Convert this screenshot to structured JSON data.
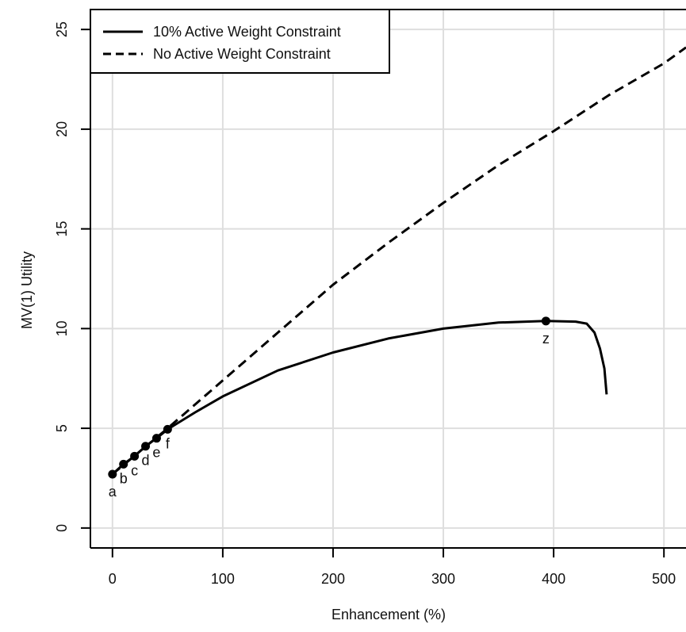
{
  "chart_data": {
    "type": "line",
    "title": "",
    "xlabel": "Enhancement (%)",
    "ylabel": "MV(1) Utility",
    "xlim": [
      -20,
      520
    ],
    "ylim": [
      -1,
      26
    ],
    "x_ticks": [
      "0",
      "100",
      "200",
      "300",
      "400",
      "500"
    ],
    "y_ticks": [
      "0",
      "5",
      "10",
      "15",
      "20",
      "25"
    ],
    "grid": true,
    "legend_position": "top-left",
    "series": [
      {
        "name": "10% Active Weight Constraint",
        "style": "solid",
        "color": "#000000",
        "points": [
          [
            0,
            2.7
          ],
          [
            10,
            3.2
          ],
          [
            20,
            3.6
          ],
          [
            30,
            4.1
          ],
          [
            40,
            4.5
          ],
          [
            50,
            4.95
          ],
          [
            75,
            5.8
          ],
          [
            100,
            6.6
          ],
          [
            150,
            7.9
          ],
          [
            200,
            8.8
          ],
          [
            250,
            9.5
          ],
          [
            300,
            10.0
          ],
          [
            350,
            10.3
          ],
          [
            393,
            10.38
          ],
          [
            420,
            10.35
          ],
          [
            430,
            10.25
          ],
          [
            437,
            9.8
          ],
          [
            442,
            9.0
          ],
          [
            446,
            8.0
          ],
          [
            448,
            6.7
          ]
        ]
      },
      {
        "name": "No Active Weight Constraint",
        "style": "dashed",
        "color": "#000000",
        "points": [
          [
            0,
            2.7
          ],
          [
            50,
            5.0
          ],
          [
            100,
            7.4
          ],
          [
            150,
            9.8
          ],
          [
            200,
            12.2
          ],
          [
            250,
            14.3
          ],
          [
            300,
            16.3
          ],
          [
            350,
            18.2
          ],
          [
            400,
            19.9
          ],
          [
            450,
            21.7
          ],
          [
            500,
            23.3
          ],
          [
            520,
            24.1
          ]
        ]
      }
    ],
    "labeled_points": [
      {
        "label": "a",
        "x": 0,
        "y": 2.7
      },
      {
        "label": "b",
        "x": 10,
        "y": 3.2
      },
      {
        "label": "c",
        "x": 20,
        "y": 3.6
      },
      {
        "label": "d",
        "x": 30,
        "y": 4.1
      },
      {
        "label": "e",
        "x": 40,
        "y": 4.5
      },
      {
        "label": "f",
        "x": 50,
        "y": 4.95
      },
      {
        "label": "z",
        "x": 393,
        "y": 10.38
      }
    ]
  }
}
